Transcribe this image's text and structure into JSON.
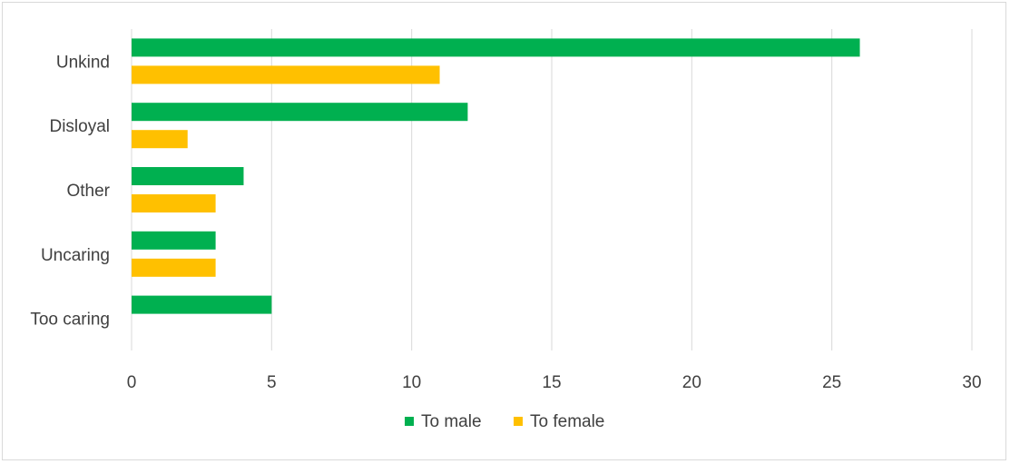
{
  "chart_data": {
    "type": "bar",
    "orientation": "horizontal",
    "categories": [
      "Unkind",
      "Disloyal",
      "Other",
      "Uncaring",
      "Too caring"
    ],
    "series": [
      {
        "name": "To male",
        "color": "#00b050",
        "values": [
          26,
          12,
          4,
          3,
          5
        ]
      },
      {
        "name": "To female",
        "color": "#ffc000",
        "values": [
          11,
          2,
          3,
          3,
          0
        ]
      }
    ],
    "xlim": [
      0,
      30
    ],
    "xticks": [
      0,
      5,
      10,
      15,
      20,
      25,
      30
    ],
    "grid": true,
    "legend": "bottom",
    "title": "",
    "xlabel": "",
    "ylabel": ""
  }
}
